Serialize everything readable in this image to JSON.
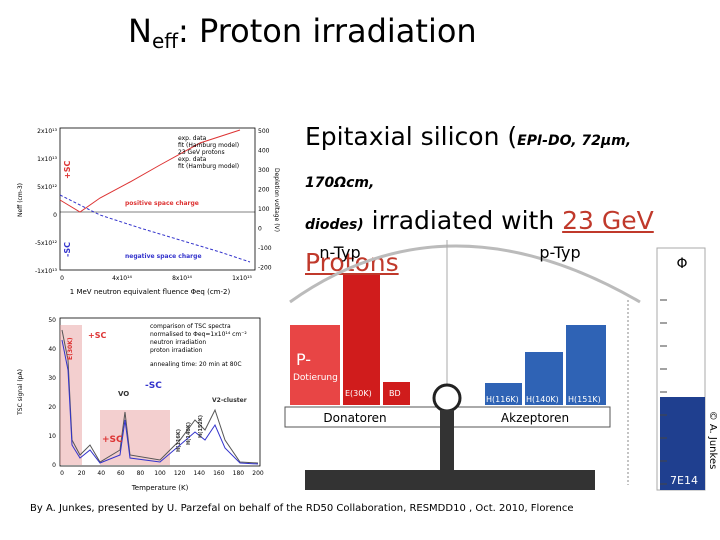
{
  "header": {
    "title_main": "N",
    "title_sub": "eff",
    "title_rest": ": Proton irradiation"
  },
  "description": {
    "part1": "Epitaxial silicon (",
    "part2": "EPI-DO, 72µm, 170Ωcm,",
    "part3": "diodes)",
    "part4": " irradiated with ",
    "part5": "23 GeV",
    "part6": "Protons"
  },
  "plot_top": {
    "y_label": "Neff (cm-3)",
    "y2_label": "Depletion voltage (V)",
    "x_label": "1 MeV neutron equivalent fluence Φeq (cm-2)",
    "plus_sc": "+SC",
    "minus_sc": "-SC",
    "positive": "positive space charge",
    "negative": "negative space charge",
    "legend": [
      "exp. data",
      "fit (Hamburg model)",
      "23 GeV protons",
      "exp. data",
      "fit (Hamburg model)"
    ],
    "yticks": [
      "2x10¹³",
      "1x10¹³",
      "5x10¹²",
      "0",
      "-5x10¹²",
      "-1x10¹³"
    ],
    "y2ticks": [
      "500",
      "400",
      "300",
      "200",
      "100",
      "0",
      "-100",
      "-200"
    ],
    "xticks": [
      "0",
      "4x10¹⁴",
      "8x10¹⁴",
      "1x10¹⁵"
    ]
  },
  "plot_bottom": {
    "y_label": "TSC signal (pA)",
    "x_label": "Temperature (K)",
    "legend": [
      "comparison of TSC spectra",
      "normalised to Φeq=1x10¹⁴ cm⁻²",
      "neutron irradiation",
      "proton irradiation"
    ],
    "annealing": "annealing time: 20 min at 80C",
    "labels": [
      "+SC",
      "-SC",
      "+SC",
      "VO",
      "E(30K)",
      "V2-cluster",
      "H(116K)",
      "H(140K)",
      "H(152K)"
    ],
    "yticks": [
      "50",
      "40",
      "30",
      "20",
      "10",
      "0"
    ],
    "xticks": [
      "0",
      "20",
      "40",
      "60",
      "80",
      "100",
      "120",
      "140",
      "160",
      "180",
      "200"
    ]
  },
  "balance": {
    "n_type": "n-Typ",
    "p_type": "p-Typ",
    "p_minus": "P-",
    "doping": "Dotierung",
    "e30k": "E(30K)",
    "bd": "BD",
    "donors": "Donatoren",
    "acceptors": "Akzeptoren",
    "h116": "H(116K)",
    "h140": "H(140K)",
    "h151": "H(151K)"
  },
  "gauge": {
    "symbol": "Φ",
    "value": "7E14"
  },
  "copyright": "© A. Junkes",
  "footer": "By A. Junkes, presented by U. Parzefal on behalf of the RD50 Collaboration, RESMDD10 , Oct. 2010, Florence"
}
